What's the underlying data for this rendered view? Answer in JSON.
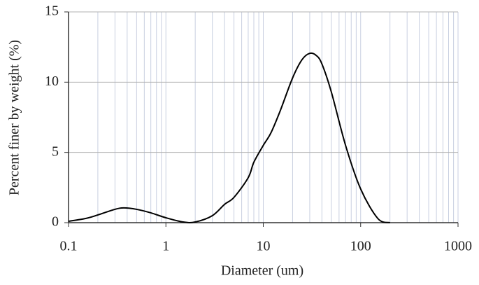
{
  "chart_data": {
    "type": "line",
    "x_label": "Diameter (um)",
    "y_label": "Percent finer by weight (%)",
    "x_scale": "log",
    "xlim": [
      0.1,
      1000
    ],
    "xticks": [
      0.1,
      1,
      10,
      100,
      1000
    ],
    "ylim": [
      0,
      15
    ],
    "yticks": [
      0,
      5,
      10,
      15
    ],
    "grid": true,
    "series": [
      {
        "color": "#000000",
        "x": [
          0.1,
          0.15,
          0.2,
          0.3,
          0.37,
          0.5,
          0.7,
          1,
          1.5,
          2,
          3,
          4,
          5,
          7,
          8,
          10,
          12,
          15,
          20,
          25,
          30,
          35,
          40,
          50,
          70,
          100,
          150,
          200
        ],
        "values": [
          0.1,
          0.3,
          0.55,
          0.95,
          1.05,
          0.95,
          0.7,
          0.35,
          0.05,
          0.05,
          0.5,
          1.3,
          1.8,
          3.2,
          4.3,
          5.5,
          6.4,
          8.0,
          10.3,
          11.6,
          12.05,
          11.9,
          11.3,
          9.3,
          5.5,
          2.4,
          0.3,
          0
        ]
      }
    ]
  }
}
